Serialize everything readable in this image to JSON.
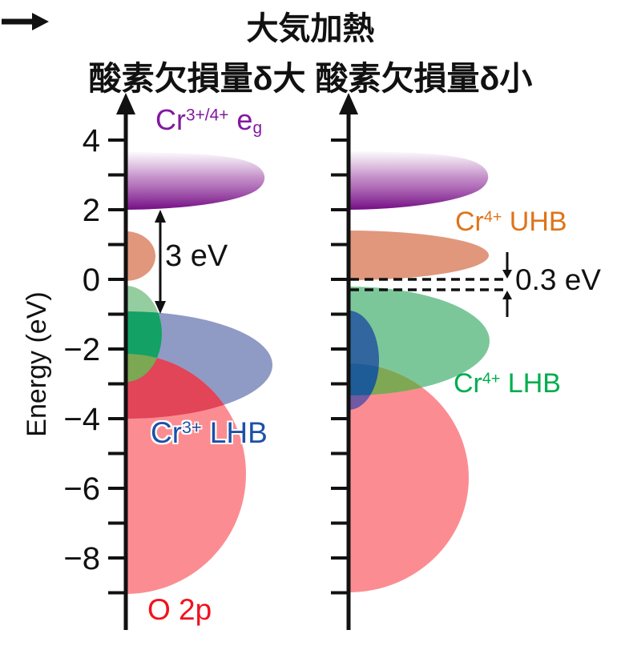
{
  "title": {
    "line1": "大気加熱",
    "line2_left": "酸素欠損量δ大",
    "line2_right": "酸素欠損量δ小",
    "arrow_meaning": "right-arrow"
  },
  "axis": {
    "label": "Energy (eV)",
    "unit": "eV",
    "labeled_ticks": [
      {
        "v": 4,
        "label": "4"
      },
      {
        "v": 2,
        "label": "2"
      },
      {
        "v": 0,
        "label": "0"
      },
      {
        "v": -2,
        "label": "−2"
      },
      {
        "v": -4,
        "label": "−4"
      },
      {
        "v": -6,
        "label": "−6"
      },
      {
        "v": -8,
        "label": "−8"
      }
    ],
    "minor_tick_values": [
      4,
      3,
      2,
      1,
      0,
      -1,
      -2,
      -3,
      -4,
      -5,
      -6,
      -7,
      -8,
      -9
    ],
    "color": "#111111"
  },
  "panels": {
    "left": {
      "condition": "oxygen deficiency δ large",
      "bands": [
        {
          "id": "cr-eg",
          "label_parts": {
            "base": "Cr",
            "sup": "3+/4+",
            "tail": " e",
            "sub": "g"
          },
          "color": "#730D84",
          "text_color": "#8218A0",
          "energy_range_eV": [
            2.0,
            3.6
          ],
          "gradient_fade_up": true
        },
        {
          "id": "in-gap-state",
          "color": "#E0977C",
          "energy_range_eV": [
            0.0,
            1.4
          ]
        },
        {
          "id": "green-band",
          "color": "#94CD9F",
          "energy_range_eV": [
            -0.2,
            -2.9
          ]
        },
        {
          "id": "cr3-lhb",
          "label_parts": {
            "base": "Cr",
            "sup": "3+",
            "tail": " LHB"
          },
          "color": "#8F9BC4",
          "text_color": "#1C50A8",
          "energy_range_eV": [
            -0.9,
            -4.0
          ]
        },
        {
          "id": "o-2p",
          "label": "O 2p",
          "color": "#FB8D92",
          "text_color": "#F2111C",
          "energy_range_eV": [
            -2.2,
            -9.0
          ]
        }
      ],
      "overlap_colors": {
        "green_blue": "#13A165",
        "green_red": "#7CA854",
        "red_blue": "#E24458"
      },
      "gap_annotation": {
        "label": "3 eV",
        "from_eV": -1.0,
        "to_eV": 2.0
      }
    },
    "right": {
      "condition": "oxygen deficiency δ small",
      "bands": [
        {
          "id": "cr-eg",
          "label_parts": {
            "base": "Cr",
            "sup": "3+/4+",
            "tail": " e",
            "sub": "g"
          },
          "color": "#730D84",
          "energy_range_eV": [
            2.0,
            3.6
          ],
          "gradient_fade_up": true
        },
        {
          "id": "cr4-uhb",
          "label_parts": {
            "base": "Cr",
            "sup": "4+",
            "tail": " UHB"
          },
          "color": "#E0977C",
          "text_color": "#DE7419",
          "energy_range_eV": [
            0.1,
            1.4
          ]
        },
        {
          "id": "cr4-lhb",
          "label_parts": {
            "base": "Cr",
            "sup": "4+",
            "tail": " LHB"
          },
          "color": "#7CC79A",
          "text_color": "#00AD4E",
          "energy_range_eV": [
            -0.2,
            -3.4
          ]
        },
        {
          "id": "blue-band",
          "color": "#31669E",
          "energy_range_eV": [
            -0.9,
            -3.7
          ]
        },
        {
          "id": "o-2p",
          "color": "#FB8D92",
          "energy_range_eV": [
            -2.4,
            -9.0
          ]
        }
      ],
      "overlap_colors": {
        "red_green": "#7EA854",
        "blue_red": "#7159A3",
        "blue_red_green": "#1D5C96"
      },
      "dashed_lines_eV": [
        0.0,
        -0.3
      ],
      "gap_annotation": {
        "label": "0.3 eV",
        "from_eV": -0.3,
        "to_eV": 0.0
      }
    }
  }
}
